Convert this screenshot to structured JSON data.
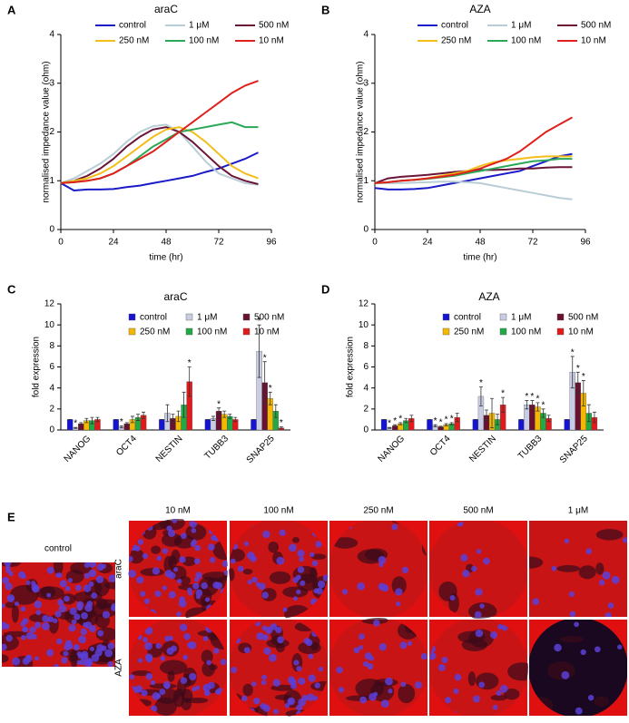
{
  "chart_data": [
    {
      "type": "line",
      "label": "A",
      "title": "araC",
      "x_label": "time (hr)",
      "y_label": "normalised impedance value (ohm)",
      "xlim": [
        0,
        96
      ],
      "xticks": [
        0,
        24,
        48,
        72,
        96
      ],
      "ylim": [
        0,
        4
      ],
      "yticks": [
        0,
        1,
        2,
        3,
        4
      ],
      "x": [
        0,
        6,
        12,
        18,
        24,
        30,
        36,
        42,
        48,
        54,
        60,
        66,
        72,
        78,
        84,
        90
      ],
      "series": [
        {
          "name": "control",
          "color": "#1a1ac8",
          "values": [
            0.95,
            0.8,
            0.82,
            0.82,
            0.83,
            0.87,
            0.9,
            0.95,
            1.0,
            1.05,
            1.1,
            1.18,
            1.25,
            1.35,
            1.45,
            1.58
          ]
        },
        {
          "name": "1 μM",
          "color": "#b9cdd6",
          "values": [
            0.95,
            1.05,
            1.2,
            1.35,
            1.55,
            1.8,
            2.0,
            2.12,
            2.15,
            2.0,
            1.7,
            1.4,
            1.15,
            1.05,
            0.95,
            0.92
          ]
        },
        {
          "name": "500 nM",
          "color": "#6a1438",
          "values": [
            0.95,
            1.0,
            1.1,
            1.25,
            1.45,
            1.7,
            1.9,
            2.05,
            2.1,
            2.0,
            1.8,
            1.55,
            1.3,
            1.1,
            1.0,
            0.93
          ]
        },
        {
          "name": "250 nM",
          "color": "#f2be1a",
          "values": [
            0.95,
            1.0,
            1.05,
            1.15,
            1.3,
            1.5,
            1.7,
            1.9,
            2.05,
            2.1,
            2.0,
            1.8,
            1.55,
            1.3,
            1.15,
            1.05
          ]
        },
        {
          "name": "100 nM",
          "color": "#2ca858",
          "values": [
            0.95,
            0.97,
            1.0,
            1.05,
            1.15,
            1.3,
            1.5,
            1.7,
            1.85,
            2.0,
            2.05,
            2.1,
            2.15,
            2.2,
            2.1,
            2.1
          ]
        },
        {
          "name": "10 nM",
          "color": "#e0201c",
          "values": [
            0.95,
            0.97,
            1.0,
            1.05,
            1.15,
            1.3,
            1.45,
            1.6,
            1.8,
            2.0,
            2.2,
            2.4,
            2.6,
            2.8,
            2.95,
            3.05
          ]
        }
      ]
    },
    {
      "type": "line",
      "label": "B",
      "title": "AZA",
      "x_label": "time (hr)",
      "y_label": "normalised impedance value (ohm)",
      "xlim": [
        0,
        96
      ],
      "xticks": [
        0,
        24,
        48,
        72,
        96
      ],
      "ylim": [
        0,
        4
      ],
      "yticks": [
        0,
        1,
        2,
        3,
        4
      ],
      "x": [
        0,
        6,
        12,
        18,
        24,
        30,
        36,
        42,
        48,
        54,
        60,
        66,
        72,
        78,
        84,
        90
      ],
      "series": [
        {
          "name": "control",
          "color": "#1a1ac8",
          "values": [
            0.85,
            0.82,
            0.82,
            0.83,
            0.85,
            0.9,
            0.95,
            1.0,
            1.05,
            1.1,
            1.15,
            1.2,
            1.3,
            1.4,
            1.5,
            1.55
          ]
        },
        {
          "name": "1 μM",
          "color": "#b9cdd6",
          "values": [
            0.95,
            0.95,
            0.95,
            0.96,
            0.97,
            0.98,
            0.98,
            0.97,
            0.95,
            0.9,
            0.85,
            0.8,
            0.75,
            0.7,
            0.65,
            0.62
          ]
        },
        {
          "name": "500 nM",
          "color": "#6a1438",
          "values": [
            0.95,
            1.05,
            1.08,
            1.1,
            1.12,
            1.15,
            1.18,
            1.2,
            1.22,
            1.22,
            1.23,
            1.25,
            1.25,
            1.27,
            1.28,
            1.28
          ]
        },
        {
          "name": "250 nM",
          "color": "#f2be1a",
          "values": [
            0.95,
            0.97,
            1.0,
            1.02,
            1.05,
            1.1,
            1.15,
            1.2,
            1.3,
            1.38,
            1.42,
            1.45,
            1.48,
            1.5,
            1.5,
            1.5
          ]
        },
        {
          "name": "100 nM",
          "color": "#2ca858",
          "values": [
            0.95,
            0.97,
            1.0,
            1.02,
            1.04,
            1.07,
            1.1,
            1.15,
            1.2,
            1.25,
            1.3,
            1.35,
            1.4,
            1.42,
            1.45,
            1.45
          ]
        },
        {
          "name": "10 nM",
          "color": "#e0201c",
          "values": [
            0.95,
            0.97,
            1.0,
            1.02,
            1.05,
            1.08,
            1.12,
            1.18,
            1.25,
            1.35,
            1.45,
            1.6,
            1.8,
            2.0,
            2.15,
            2.3
          ]
        }
      ]
    },
    {
      "type": "bar",
      "label": "C",
      "title": "araC",
      "y_label": "fold expression",
      "ylim": [
        0,
        12
      ],
      "yticks": [
        0,
        2,
        4,
        6,
        8,
        10,
        12
      ],
      "categories": [
        "NANOG",
        "OCT4",
        "NESTIN",
        "TUBB3",
        "SNAP25"
      ],
      "series": [
        {
          "name": "control",
          "color": "#1414d2",
          "values": [
            1,
            1,
            1,
            1,
            1
          ],
          "errors": [
            0,
            0,
            0,
            0,
            0
          ],
          "significance": [
            null,
            null,
            null,
            null,
            null
          ]
        },
        {
          "name": "1 μM",
          "color": "#c8cde4",
          "values": [
            0.2,
            0.3,
            1.6,
            1.1,
            7.5
          ],
          "errors": [
            0.05,
            0.1,
            0.8,
            0.2,
            2.5
          ],
          "significance": [
            "*",
            "*",
            null,
            null,
            "*"
          ]
        },
        {
          "name": "500 nM",
          "color": "#6a1030",
          "values": [
            0.6,
            0.6,
            1.1,
            1.8,
            4.5
          ],
          "errors": [
            0.1,
            0.1,
            0.4,
            0.3,
            2.0
          ],
          "significance": [
            null,
            null,
            null,
            "*",
            "*"
          ]
        },
        {
          "name": "250 nM",
          "color": "#f5b800",
          "values": [
            0.9,
            1.0,
            1.3,
            1.5,
            3.0
          ],
          "errors": [
            0.2,
            0.3,
            0.5,
            0.3,
            0.6
          ],
          "significance": [
            null,
            null,
            null,
            null,
            "*"
          ]
        },
        {
          "name": "100 nM",
          "color": "#22a845",
          "values": [
            0.9,
            1.2,
            2.4,
            1.3,
            1.8
          ],
          "errors": [
            0.3,
            0.3,
            1.2,
            0.2,
            0.6
          ],
          "significance": [
            null,
            null,
            null,
            null,
            null
          ]
        },
        {
          "name": "10 nM",
          "color": "#e31a1c",
          "values": [
            1.0,
            1.4,
            4.6,
            1.0,
            0.2
          ],
          "errors": [
            0.2,
            0.3,
            1.4,
            0.2,
            0.1
          ],
          "significance": [
            null,
            null,
            "*",
            null,
            "*"
          ]
        }
      ]
    },
    {
      "type": "bar",
      "label": "D",
      "title": "AZA",
      "y_label": "fold expression",
      "ylim": [
        0,
        12
      ],
      "yticks": [
        0,
        2,
        4,
        6,
        8,
        10,
        12
      ],
      "categories": [
        "NANOG",
        "OCT4",
        "NESTIN",
        "TUBB3",
        "SNAP25"
      ],
      "series": [
        {
          "name": "control",
          "color": "#1414d2",
          "values": [
            1,
            1,
            1,
            1,
            1
          ],
          "errors": [
            0,
            0,
            0,
            0,
            0
          ],
          "significance": [
            null,
            null,
            null,
            null,
            null
          ]
        },
        {
          "name": "1 μM",
          "color": "#c8cde4",
          "values": [
            0.2,
            0.4,
            3.2,
            2.4,
            5.5
          ],
          "errors": [
            0.05,
            0.1,
            0.9,
            0.4,
            1.5
          ],
          "significance": [
            "*",
            "*",
            "*",
            "*",
            "*"
          ]
        },
        {
          "name": "500 nM",
          "color": "#6a1030",
          "values": [
            0.4,
            0.3,
            1.4,
            2.4,
            4.5
          ],
          "errors": [
            0.1,
            0.05,
            0.5,
            0.4,
            1.0
          ],
          "significance": [
            "*",
            "*",
            null,
            "*",
            "*"
          ]
        },
        {
          "name": "250 nM",
          "color": "#f5b800",
          "values": [
            0.6,
            0.5,
            1.6,
            2.2,
            3.5
          ],
          "errors": [
            0.1,
            0.1,
            1.4,
            0.4,
            1.2
          ],
          "significance": [
            "*",
            "*",
            null,
            "*",
            "*"
          ]
        },
        {
          "name": "100 nM",
          "color": "#22a845",
          "values": [
            0.9,
            0.6,
            1.0,
            1.6,
            1.6
          ],
          "errors": [
            0.2,
            0.1,
            0.5,
            0.4,
            0.8
          ],
          "significance": [
            null,
            "*",
            null,
            "*",
            null
          ]
        },
        {
          "name": "10 nM",
          "color": "#e31a1c",
          "values": [
            1.1,
            1.2,
            2.4,
            1.1,
            1.2
          ],
          "errors": [
            0.3,
            0.4,
            0.7,
            0.3,
            0.5
          ],
          "significance": [
            null,
            null,
            "*",
            null,
            null
          ]
        }
      ]
    }
  ],
  "panel_e": {
    "label": "E",
    "control": "control",
    "columns": [
      "10 nM",
      "100 nM",
      "250 nM",
      "500 nM",
      "1 μM"
    ],
    "rows": [
      "araC",
      "AZA"
    ]
  }
}
